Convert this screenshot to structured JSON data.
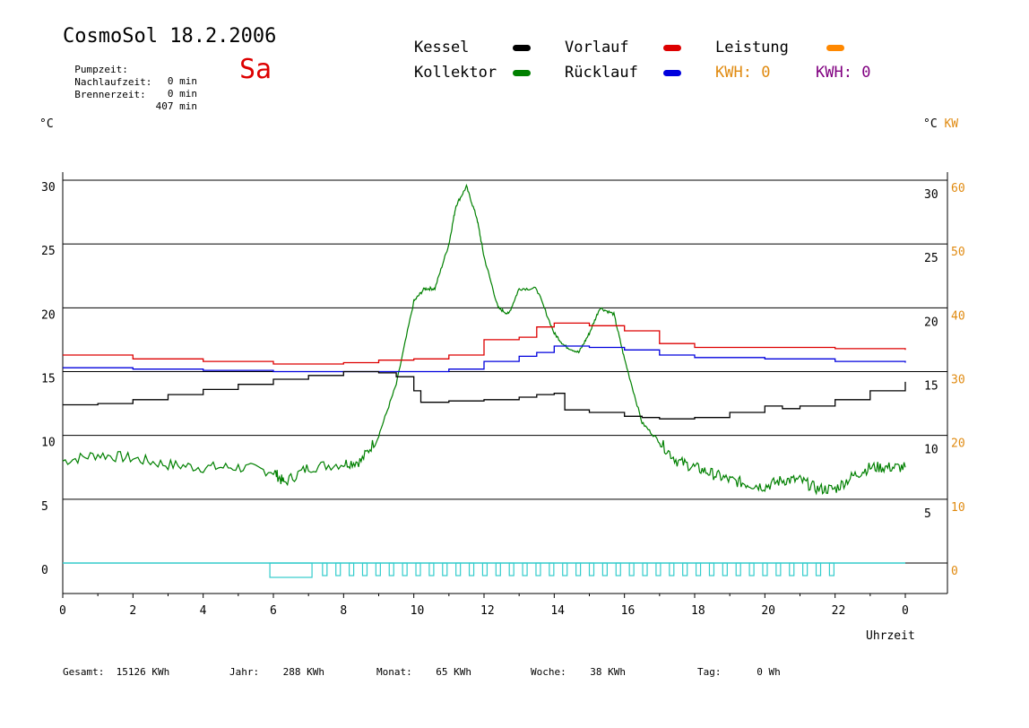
{
  "header": {
    "title": "CosmoSol 18.2.2006",
    "day": "Sa",
    "stats": [
      {
        "label": "Pumpzeit:",
        "value": "0 min"
      },
      {
        "label": "Nachlaufzeit:",
        "value": "0 min"
      },
      {
        "label": "Brennerzeit:",
        "value": "407 min"
      }
    ]
  },
  "legend": {
    "kessel": {
      "label": "Kessel",
      "color": "#000000"
    },
    "vorlauf": {
      "label": "Vorlauf",
      "color": "#dd0000"
    },
    "leistung": {
      "label": "Leistung",
      "color": "#ff8800"
    },
    "kollektor": {
      "label": "Kollektor",
      "color": "#008000"
    },
    "ruecklauf": {
      "label": "Rücklauf",
      "color": "#0000dd"
    },
    "kwh1": {
      "label": "KWH:",
      "value": "0",
      "color": "#e08a10"
    },
    "kwh2": {
      "label": "KWH:",
      "value": "0",
      "color": "#800080"
    }
  },
  "axes": {
    "left_unit": "°C",
    "right_unit": "°C",
    "right_unit2": "KW",
    "x_label": "Uhrzeit"
  },
  "footer": [
    {
      "label": "Gesamt:",
      "value": "15126 KWh"
    },
    {
      "label": "Jahr:",
      "value": "288 KWh"
    },
    {
      "label": "Monat:",
      "value": "65 KWh"
    },
    {
      "label": "Woche:",
      "value": "38 KWh"
    },
    {
      "label": "Tag:",
      "value": "0 Wh"
    }
  ],
  "chart_data": {
    "type": "line",
    "x_ticks": [
      "0",
      "2",
      "4",
      "6",
      "8",
      "10",
      "12",
      "14",
      "16",
      "18",
      "20",
      "22",
      "0"
    ],
    "y_left_ticks": [
      "0",
      "5",
      "10",
      "15",
      "20",
      "25",
      "30"
    ],
    "y_right_ticks": [
      "5",
      "10",
      "15",
      "20",
      "25",
      "30"
    ],
    "y_kw_ticks": [
      "0",
      "10",
      "20",
      "30",
      "40",
      "50",
      "60"
    ],
    "xlim": [
      0,
      24
    ],
    "ylim": [
      0,
      30
    ],
    "kw_lim": [
      0,
      60
    ],
    "grid": "horizontal",
    "series": [
      {
        "name": "Kollektor",
        "color": "#008000",
        "x": [
          0,
          1,
          2,
          3,
          4,
          5,
          6,
          6.3,
          7,
          8,
          8.5,
          9,
          9.5,
          10,
          10.3,
          10.6,
          11,
          11.2,
          11.5,
          11.8,
          12,
          12.4,
          12.7,
          13,
          13.5,
          14,
          14.3,
          14.7,
          15,
          15.3,
          15.7,
          16,
          16.5,
          17,
          17.5,
          18,
          18.5,
          19,
          19.5,
          20,
          20.5,
          21,
          21.5,
          22,
          22.5,
          23,
          23.5,
          24
        ],
        "y": [
          8,
          8.5,
          8.2,
          7.7,
          7.5,
          7.5,
          7.2,
          6.3,
          7.5,
          7.8,
          8,
          10,
          14,
          20.5,
          21.5,
          21.5,
          25,
          28,
          29.5,
          27,
          24,
          20,
          19.5,
          21.5,
          21.5,
          18,
          17,
          16.5,
          18,
          20,
          19.5,
          16,
          11,
          9.5,
          8,
          7.5,
          7,
          6.5,
          6.2,
          6,
          6.5,
          6.5,
          5.8,
          5.8,
          6.8,
          7.5,
          7.5,
          7.5
        ]
      },
      {
        "name": "Vorlauf",
        "color": "#dd0000",
        "x": [
          0,
          2,
          4,
          6,
          8,
          9,
          10,
          11,
          12,
          13,
          13.5,
          14,
          15,
          16,
          17,
          18,
          20,
          22,
          24
        ],
        "y": [
          16.3,
          16,
          15.8,
          15.6,
          15.7,
          15.9,
          16,
          16.3,
          17.5,
          17.7,
          18.5,
          18.8,
          18.6,
          18.2,
          17.2,
          16.9,
          16.9,
          16.8,
          16.7
        ]
      },
      {
        "name": "Rücklauf",
        "color": "#0000dd",
        "x": [
          0,
          2,
          4,
          6,
          8,
          10,
          11,
          12,
          13,
          13.5,
          14,
          15,
          16,
          17,
          18,
          20,
          22,
          24
        ],
        "y": [
          15.3,
          15.2,
          15.1,
          15,
          15,
          15,
          15.2,
          15.8,
          16.2,
          16.5,
          17,
          16.9,
          16.7,
          16.3,
          16.1,
          16,
          15.8,
          15.7
        ]
      },
      {
        "name": "Kessel",
        "color": "#000000",
        "x": [
          0,
          1,
          2,
          3,
          4,
          5,
          6,
          7,
          8,
          9,
          9.5,
          10,
          10.2,
          11,
          12,
          12.8,
          13,
          13.5,
          14,
          14.3,
          15,
          16,
          16.5,
          17,
          18,
          19,
          20,
          20.5,
          21,
          22,
          23,
          24
        ],
        "y": [
          12.4,
          12.5,
          12.8,
          13.2,
          13.6,
          14,
          14.4,
          14.7,
          15,
          14.9,
          14.6,
          13.5,
          12.6,
          12.7,
          12.8,
          12.8,
          13,
          13.2,
          13.3,
          12,
          11.8,
          11.5,
          11.4,
          11.3,
          11.4,
          11.8,
          12.3,
          12.1,
          12.3,
          12.8,
          13.5,
          14.2
        ]
      }
    ]
  }
}
